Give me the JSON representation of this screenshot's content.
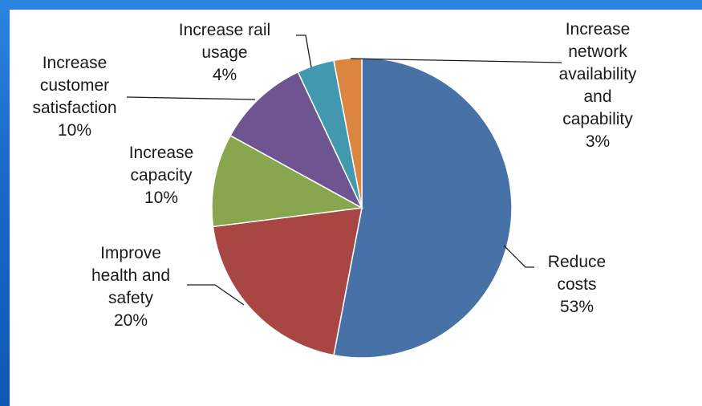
{
  "chart_data": {
    "type": "pie",
    "title": "",
    "slices": [
      {
        "name": "Reduce costs",
        "pct": "53%",
        "value": 53,
        "color": "#4672a8",
        "label_lines": [
          "Reduce",
          "costs",
          "53%"
        ]
      },
      {
        "name": "Improve health and safety",
        "pct": "20%",
        "value": 20,
        "color": "#a84644",
        "label_lines": [
          "Improve",
          "health and",
          "safety",
          "20%"
        ]
      },
      {
        "name": "Increase capacity",
        "pct": "10%",
        "value": 10,
        "color": "#88a64d",
        "label_lines": [
          "Increase",
          "capacity",
          "10%"
        ]
      },
      {
        "name": "Increase customer satisfaction",
        "pct": "10%",
        "value": 10,
        "color": "#6e5592",
        "label_lines": [
          "Increase",
          "customer",
          "satisfaction",
          "10%"
        ]
      },
      {
        "name": "Increase rail usage",
        "pct": "4%",
        "value": 4,
        "color": "#4198af",
        "label_lines": [
          "Increase rail",
          "usage",
          "4%"
        ]
      },
      {
        "name": "Increase network availability and capability",
        "pct": "3%",
        "value": 3,
        "color": "#db8540",
        "label_lines": [
          "Increase",
          "network",
          "availability",
          "and",
          "capability",
          "3%"
        ]
      }
    ]
  }
}
